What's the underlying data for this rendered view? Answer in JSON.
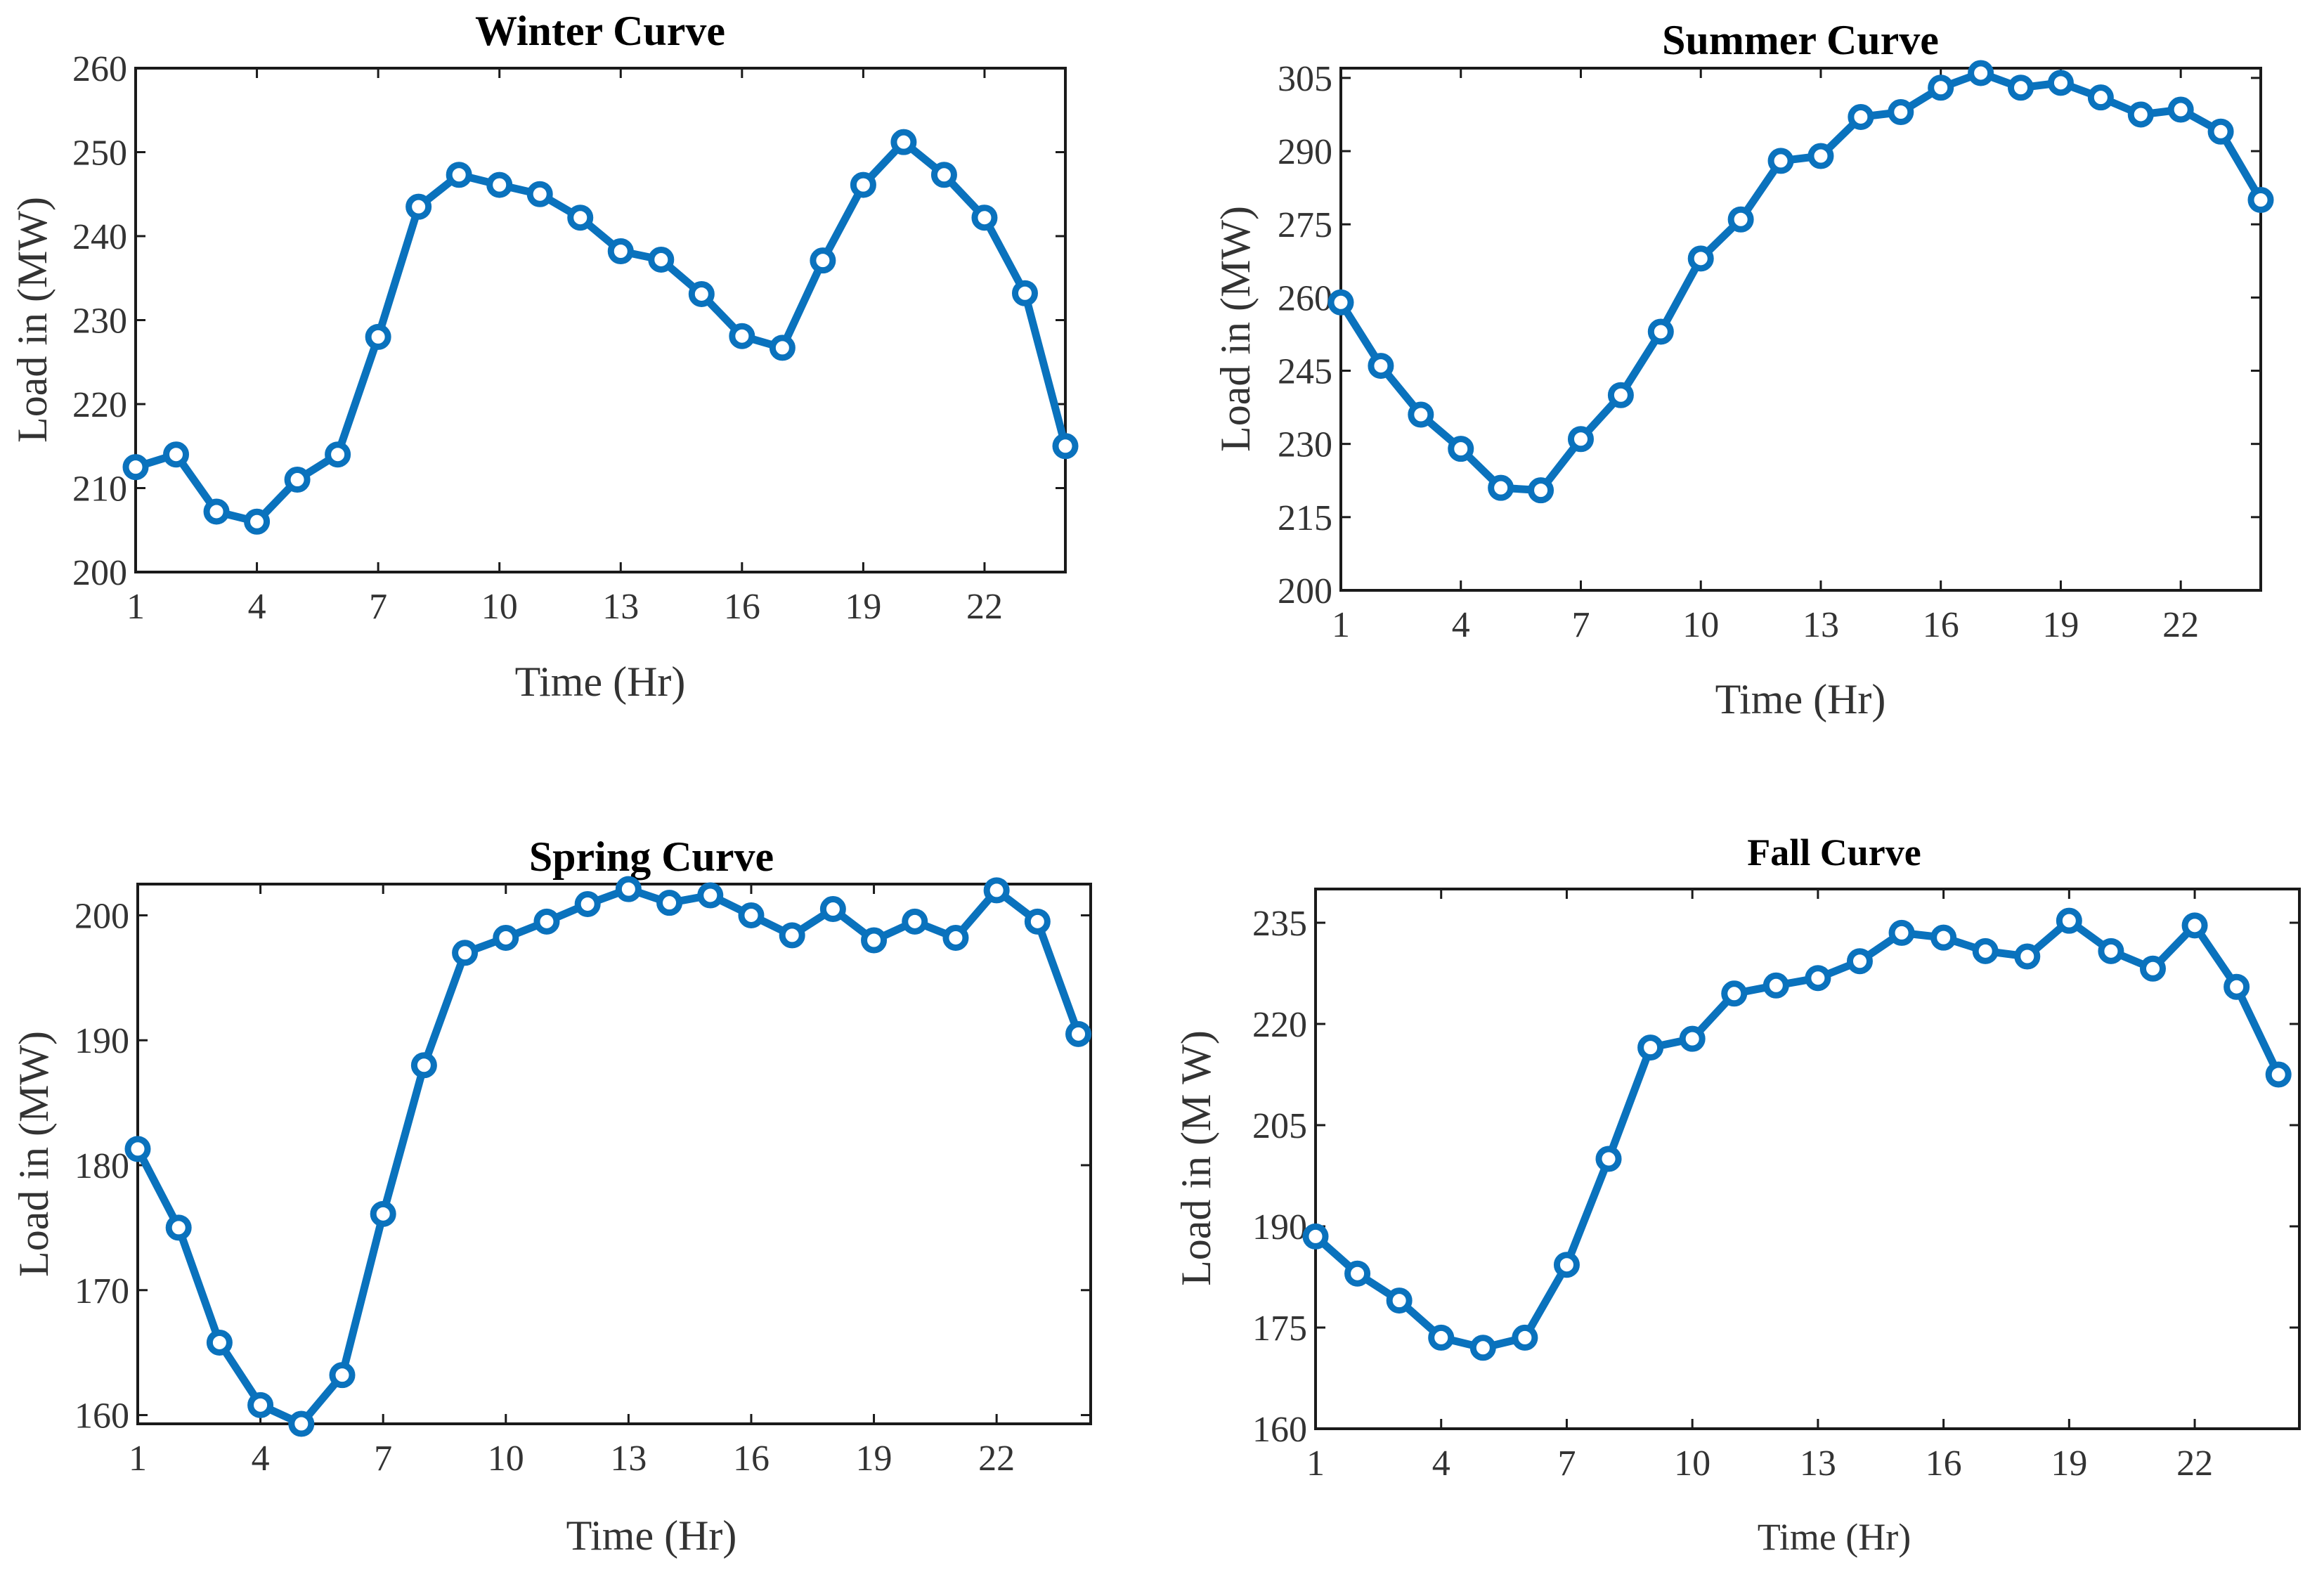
{
  "colors": {
    "series": "#0a72bd",
    "axis": "#1a1a1a",
    "text": "#333333"
  },
  "chart_data": [
    {
      "type": "line",
      "title": "Winter Curve",
      "xlabel": "Time (Hr)",
      "ylabel": "Load in (MW)",
      "xlim": [
        1,
        24
      ],
      "ylim": [
        200,
        260
      ],
      "xticks": [
        1,
        4,
        7,
        10,
        13,
        16,
        19,
        22
      ],
      "yticks": [
        200,
        210,
        220,
        230,
        240,
        250,
        260
      ],
      "x": [
        1,
        2,
        3,
        4,
        5,
        6,
        7,
        8,
        9,
        10,
        11,
        12,
        13,
        14,
        15,
        16,
        17,
        18,
        19,
        20,
        21,
        22,
        23,
        24
      ],
      "values": [
        212.5,
        214,
        207.2,
        206,
        211,
        214,
        228,
        243.5,
        247.3,
        246.1,
        245,
        242.2,
        238.2,
        237.2,
        233.1,
        228.1,
        226.7,
        237.1,
        246.1,
        251.2,
        247.3,
        242.2,
        233.2,
        215
      ]
    },
    {
      "type": "line",
      "title": "Summer Curve",
      "xlabel": "Time (Hr)",
      "ylabel": "Load in (MW)",
      "xlim": [
        1,
        24
      ],
      "ylim": [
        200,
        307
      ],
      "xticks": [
        1,
        4,
        7,
        10,
        13,
        16,
        19,
        22
      ],
      "yticks": [
        200,
        215,
        230,
        245,
        260,
        275,
        290,
        305
      ],
      "x": [
        1,
        2,
        3,
        4,
        5,
        6,
        7,
        8,
        9,
        10,
        11,
        12,
        13,
        14,
        15,
        16,
        17,
        18,
        19,
        20,
        21,
        22,
        23,
        24
      ],
      "values": [
        259,
        246,
        236,
        229,
        221,
        220.5,
        231,
        240,
        253,
        268,
        276,
        288,
        289,
        297,
        298,
        303,
        306,
        303,
        304,
        301,
        297.5,
        298.5,
        294,
        280
      ]
    },
    {
      "type": "line",
      "title": "Spring Curve",
      "xlabel": "Time (Hr)",
      "ylabel": "Load in (MW)",
      "xlim": [
        1,
        24.3
      ],
      "ylim": [
        159.3,
        202.5
      ],
      "xticks": [
        1,
        4,
        7,
        10,
        13,
        16,
        19,
        22
      ],
      "yticks": [
        160,
        170,
        180,
        190,
        200
      ],
      "x": [
        1,
        2,
        3,
        4,
        5,
        6,
        7,
        8,
        9,
        10,
        11,
        12,
        13,
        14,
        15,
        16,
        17,
        18,
        19,
        20,
        21,
        22,
        23,
        24
      ],
      "values": [
        181.3,
        175,
        165.8,
        160.8,
        159.3,
        163.2,
        176.1,
        188,
        197,
        198.2,
        199.5,
        200.9,
        202.1,
        201,
        201.6,
        200,
        198.4,
        200.5,
        198,
        199.5,
        198.2,
        202,
        199.5,
        190.5
      ]
    },
    {
      "type": "line",
      "title": "Fall Curve",
      "xlabel": "Time (Hr)",
      "ylabel": "Load in (M W)",
      "xlim": [
        1,
        24.5
      ],
      "ylim": [
        160,
        240
      ],
      "xticks": [
        1,
        4,
        7,
        10,
        13,
        16,
        19,
        22
      ],
      "yticks": [
        160,
        175,
        190,
        205,
        220,
        235
      ],
      "x": [
        1,
        2,
        3,
        4,
        5,
        6,
        7,
        8,
        9,
        10,
        11,
        12,
        13,
        14,
        15,
        16,
        17,
        18,
        19,
        20,
        21,
        22,
        23,
        24
      ],
      "values": [
        188.5,
        183,
        179,
        173.5,
        172,
        173.5,
        184.3,
        200,
        216.5,
        217.8,
        224.5,
        225.7,
        226.8,
        229.3,
        233.5,
        232.8,
        230.8,
        230,
        235.3,
        230.8,
        228.2,
        234.6,
        225.5,
        212.5
      ]
    }
  ]
}
